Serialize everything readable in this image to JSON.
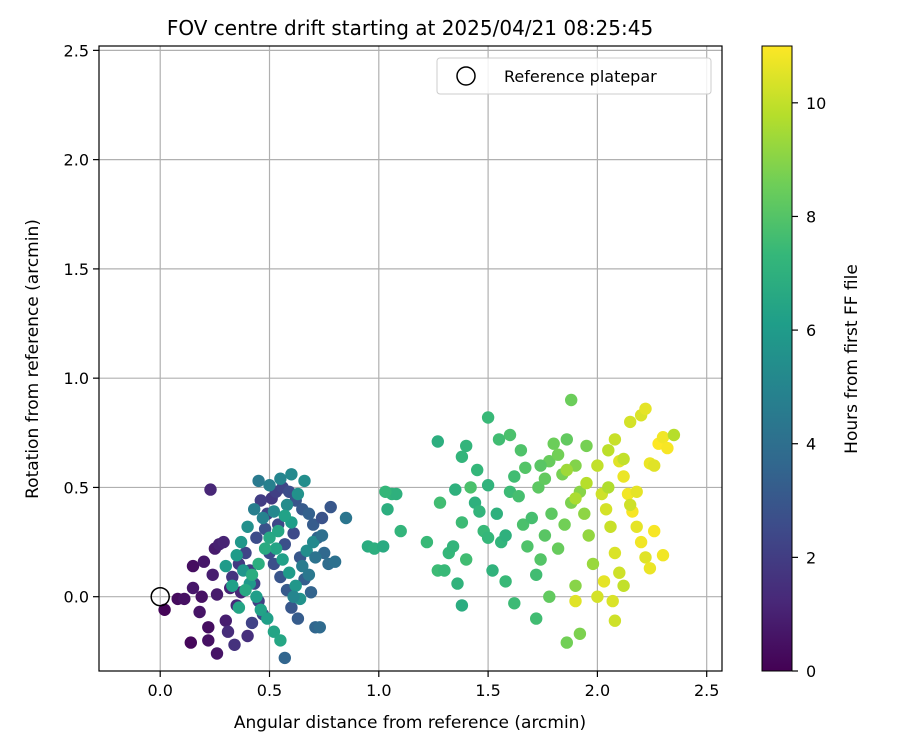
{
  "chart_data": {
    "type": "scatter",
    "title": "FOV centre drift starting at 2025/04/21 08:25:45",
    "xlabel": "Angular distance from reference (arcmin)",
    "ylabel": "Rotation from reference (arcmin)",
    "xlim": [
      -0.28,
      2.57
    ],
    "ylim": [
      -0.34,
      2.52
    ],
    "xticks": [
      0.0,
      0.5,
      1.0,
      1.5,
      2.0,
      2.5
    ],
    "xtick_labels": [
      "0.0",
      "0.5",
      "1.0",
      "1.5",
      "2.0",
      "2.5"
    ],
    "yticks": [
      0.0,
      0.5,
      1.0,
      1.5,
      2.0,
      2.5
    ],
    "ytick_labels": [
      "0.0",
      "0.5",
      "1.0",
      "1.5",
      "2.0",
      "2.5"
    ],
    "grid": true,
    "legend": {
      "placement": "top-right",
      "entries": [
        "Reference platepar"
      ]
    },
    "reference_point": {
      "x": 0.0,
      "y": 0.0,
      "label": "Reference platepar"
    },
    "colorbar": {
      "label": "Hours from first FF file",
      "min": 0,
      "max": 11,
      "ticks": [
        0,
        2,
        4,
        6,
        8,
        10
      ],
      "tick_labels": [
        "0",
        "2",
        "4",
        "6",
        "8",
        "10"
      ],
      "colormap": "viridis",
      "colormap_stops": [
        "#440154",
        "#482878",
        "#3e4989",
        "#31688e",
        "#26828e",
        "#1f9e89",
        "#35b779",
        "#6ece58",
        "#b5de2b",
        "#fde725"
      ]
    },
    "series": [
      {
        "points": [
          [
            0.02,
            -0.06,
            0.1
          ],
          [
            0.08,
            -0.01,
            0.3
          ],
          [
            0.11,
            -0.01,
            0.5
          ],
          [
            0.15,
            0.04,
            0.7
          ],
          [
            0.14,
            -0.21,
            0.2
          ],
          [
            0.18,
            -0.07,
            0.6
          ],
          [
            0.22,
            -0.14,
            0.4
          ],
          [
            0.22,
            -0.2,
            0.5
          ],
          [
            0.24,
            0.1,
            0.9
          ],
          [
            0.25,
            0.22,
            0.8
          ],
          [
            0.27,
            0.24,
            1.0
          ],
          [
            0.29,
            0.25,
            1.1
          ],
          [
            0.26,
            -0.26,
            0.6
          ],
          [
            0.3,
            -0.11,
            0.9
          ],
          [
            0.23,
            0.49,
            1.2
          ],
          [
            0.15,
            0.14,
            0.4
          ],
          [
            0.2,
            0.16,
            0.7
          ],
          [
            0.32,
            0.04,
            1.1
          ],
          [
            0.35,
            -0.04,
            1.3
          ],
          [
            0.37,
            0.02,
            1.2
          ],
          [
            0.19,
            0.0,
            0.5
          ],
          [
            0.31,
            -0.16,
            1.4
          ],
          [
            0.34,
            -0.22,
            1.6
          ],
          [
            0.4,
            -0.18,
            1.5
          ],
          [
            0.26,
            0.01,
            0.8
          ],
          [
            0.33,
            0.09,
            1.7
          ],
          [
            0.36,
            0.15,
            1.9
          ],
          [
            0.41,
            0.12,
            2.0
          ],
          [
            0.43,
            0.06,
            2.2
          ],
          [
            0.45,
            -0.02,
            2.1
          ],
          [
            0.47,
            -0.08,
            2.4
          ],
          [
            0.39,
            0.2,
            2.3
          ],
          [
            0.44,
            0.27,
            2.6
          ],
          [
            0.48,
            0.31,
            2.8
          ],
          [
            0.5,
            0.2,
            2.5
          ],
          [
            0.52,
            0.15,
            2.7
          ],
          [
            0.55,
            0.09,
            2.9
          ],
          [
            0.58,
            0.03,
            3.1
          ],
          [
            0.6,
            -0.05,
            3.0
          ],
          [
            0.63,
            -0.1,
            3.2
          ],
          [
            0.51,
            0.45,
            1.8
          ],
          [
            0.53,
            0.48,
            2.1
          ],
          [
            0.56,
            0.5,
            2.3
          ],
          [
            0.59,
            0.48,
            2.6
          ],
          [
            0.62,
            0.44,
            2.9
          ],
          [
            0.65,
            0.4,
            3.1
          ],
          [
            0.68,
            0.38,
            3.4
          ],
          [
            0.7,
            0.33,
            3.2
          ],
          [
            0.72,
            0.27,
            3.5
          ],
          [
            0.75,
            0.2,
            3.7
          ],
          [
            0.77,
            0.15,
            3.9
          ],
          [
            0.8,
            0.16,
            4.1
          ],
          [
            0.71,
            -0.14,
            3.6
          ],
          [
            0.73,
            -0.14,
            3.8
          ],
          [
            0.66,
            0.08,
            3.3
          ],
          [
            0.69,
            0.02,
            3.5
          ],
          [
            0.64,
            0.18,
            3.0
          ],
          [
            0.57,
            0.24,
            2.7
          ],
          [
            0.54,
            0.33,
            2.4
          ],
          [
            0.49,
            0.38,
            2.2
          ],
          [
            0.46,
            0.44,
            2.0
          ],
          [
            0.78,
            0.41,
            3.0
          ],
          [
            0.74,
            0.36,
            2.8
          ],
          [
            0.61,
            0.29,
            2.5
          ],
          [
            0.42,
            -0.12,
            2.2
          ],
          [
            0.45,
            0.53,
            4.5
          ],
          [
            0.5,
            0.51,
            4.8
          ],
          [
            0.55,
            0.54,
            5.0
          ],
          [
            0.6,
            0.56,
            5.2
          ],
          [
            0.66,
            0.53,
            5.4
          ],
          [
            0.63,
            0.47,
            5.6
          ],
          [
            0.58,
            0.42,
            5.3
          ],
          [
            0.52,
            0.39,
            5.1
          ],
          [
            0.47,
            0.36,
            4.9
          ],
          [
            0.43,
            0.4,
            4.7
          ],
          [
            0.4,
            0.32,
            5.5
          ],
          [
            0.37,
            0.25,
            5.8
          ],
          [
            0.35,
            0.19,
            6.0
          ],
          [
            0.38,
            0.12,
            5.7
          ],
          [
            0.41,
            0.06,
            5.9
          ],
          [
            0.44,
            0.0,
            6.1
          ],
          [
            0.46,
            -0.06,
            6.3
          ],
          [
            0.49,
            -0.1,
            6.2
          ],
          [
            0.52,
            -0.16,
            6.4
          ],
          [
            0.55,
            -0.2,
            6.5
          ],
          [
            0.5,
            0.27,
            6.6
          ],
          [
            0.53,
            0.22,
            6.4
          ],
          [
            0.56,
            0.17,
            6.2
          ],
          [
            0.59,
            0.11,
            6.0
          ],
          [
            0.62,
            0.05,
            5.8
          ],
          [
            0.64,
            -0.01,
            5.6
          ],
          [
            0.67,
            0.21,
            5.4
          ],
          [
            0.7,
            0.25,
            5.2
          ],
          [
            0.6,
            0.34,
            6.1
          ],
          [
            0.57,
            0.37,
            6.3
          ],
          [
            0.54,
            0.3,
            6.5
          ],
          [
            0.48,
            0.22,
            6.7
          ],
          [
            0.45,
            0.15,
            6.9
          ],
          [
            0.42,
            0.1,
            6.8
          ],
          [
            0.39,
            0.03,
            6.6
          ],
          [
            0.36,
            -0.05,
            6.4
          ],
          [
            0.33,
            0.05,
            6.2
          ],
          [
            0.3,
            0.14,
            6.0
          ],
          [
            0.65,
            0.14,
            4.6
          ],
          [
            0.68,
            0.1,
            4.4
          ],
          [
            0.71,
            0.18,
            4.2
          ],
          [
            0.74,
            0.28,
            4.0
          ],
          [
            0.85,
            0.36,
            4.3
          ],
          [
            0.57,
            -0.28,
            3.6
          ],
          [
            0.61,
            0.0,
            5.0
          ],
          [
            0.95,
            0.23,
            6.8
          ],
          [
            0.98,
            0.22,
            6.9
          ],
          [
            1.02,
            0.23,
            6.7
          ],
          [
            1.04,
            0.4,
            6.9
          ],
          [
            1.06,
            0.47,
            7.1
          ],
          [
            1.08,
            0.47,
            7.0
          ],
          [
            1.1,
            0.3,
            7.2
          ],
          [
            1.03,
            0.48,
            7.3
          ],
          [
            1.22,
            0.25,
            7.4
          ],
          [
            1.27,
            0.12,
            7.5
          ],
          [
            1.28,
            0.43,
            7.6
          ],
          [
            1.3,
            0.12,
            7.4
          ],
          [
            1.32,
            0.2,
            7.3
          ],
          [
            1.34,
            0.23,
            7.2
          ],
          [
            1.36,
            0.06,
            7.1
          ],
          [
            1.38,
            0.34,
            7.5
          ],
          [
            1.4,
            0.17,
            7.6
          ],
          [
            1.42,
            0.5,
            7.8
          ],
          [
            1.44,
            0.43,
            7.0
          ],
          [
            1.46,
            0.39,
            7.2
          ],
          [
            1.48,
            0.3,
            7.4
          ],
          [
            1.5,
            0.27,
            7.3
          ],
          [
            1.52,
            0.12,
            7.1
          ],
          [
            1.54,
            0.38,
            7.0
          ],
          [
            1.56,
            0.25,
            7.2
          ],
          [
            1.58,
            0.07,
            7.4
          ],
          [
            1.6,
            0.48,
            7.5
          ],
          [
            1.62,
            0.55,
            7.6
          ],
          [
            1.64,
            0.46,
            7.7
          ],
          [
            1.66,
            0.33,
            7.8
          ],
          [
            1.68,
            0.23,
            7.9
          ],
          [
            1.7,
            0.36,
            7.7
          ],
          [
            1.72,
            0.1,
            7.6
          ],
          [
            1.27,
            0.71,
            6.9
          ],
          [
            1.4,
            0.69,
            7.2
          ],
          [
            1.5,
            0.82,
            7.4
          ],
          [
            1.55,
            0.72,
            7.6
          ],
          [
            1.6,
            0.74,
            7.8
          ],
          [
            1.65,
            0.67,
            7.9
          ],
          [
            1.45,
            0.58,
            7.3
          ],
          [
            1.5,
            0.51,
            7.1
          ],
          [
            1.35,
            0.49,
            7.0
          ],
          [
            1.38,
            0.64,
            7.2
          ],
          [
            1.62,
            -0.03,
            7.5
          ],
          [
            1.72,
            -0.1,
            7.6
          ],
          [
            1.38,
            -0.04,
            6.8
          ],
          [
            1.58,
            0.28,
            7.0
          ],
          [
            1.67,
            0.59,
            8.0
          ],
          [
            1.73,
            0.5,
            8.2
          ],
          [
            1.76,
            0.54,
            8.3
          ],
          [
            1.78,
            0.62,
            8.4
          ],
          [
            1.8,
            0.7,
            8.5
          ],
          [
            1.82,
            0.65,
            8.6
          ],
          [
            1.84,
            0.56,
            8.7
          ],
          [
            1.86,
            0.72,
            8.3
          ],
          [
            1.88,
            0.9,
            8.5
          ],
          [
            1.79,
            0.38,
            8.2
          ],
          [
            1.76,
            0.28,
            8.1
          ],
          [
            1.74,
            0.17,
            8.0
          ],
          [
            1.78,
            0.0,
            8.3
          ],
          [
            1.82,
            0.22,
            8.4
          ],
          [
            1.85,
            0.33,
            8.6
          ],
          [
            1.88,
            0.43,
            8.8
          ],
          [
            1.9,
            0.6,
            8.9
          ],
          [
            1.92,
            0.48,
            9.0
          ],
          [
            1.94,
            0.38,
            9.1
          ],
          [
            1.96,
            0.28,
            9.2
          ],
          [
            1.98,
            0.15,
            9.3
          ],
          [
            1.9,
            0.05,
            9.0
          ],
          [
            1.86,
            -0.21,
            8.6
          ],
          [
            1.92,
            -0.17,
            8.8
          ],
          [
            1.74,
            0.6,
            8.1
          ],
          [
            1.95,
            0.69,
            8.7
          ],
          [
            1.86,
            0.58,
            9.4
          ],
          [
            1.9,
            0.45,
            9.6
          ],
          [
            1.95,
            0.52,
            9.8
          ],
          [
            2.0,
            0.6,
            10.0
          ],
          [
            2.02,
            0.47,
            10.2
          ],
          [
            2.04,
            0.4,
            10.3
          ],
          [
            2.06,
            0.32,
            10.1
          ],
          [
            2.08,
            0.2,
            10.4
          ],
          [
            2.1,
            0.11,
            10.2
          ],
          [
            2.12,
            0.05,
            10.0
          ],
          [
            1.9,
            -0.02,
            10.5
          ],
          [
            2.0,
            0.0,
            10.3
          ],
          [
            2.03,
            0.07,
            10.6
          ],
          [
            2.07,
            -0.02,
            10.4
          ],
          [
            2.08,
            -0.11,
            10.2
          ],
          [
            2.1,
            0.62,
            10.5
          ],
          [
            2.12,
            0.55,
            10.7
          ],
          [
            2.14,
            0.47,
            10.8
          ],
          [
            2.16,
            0.39,
            10.9
          ],
          [
            2.18,
            0.32,
            10.6
          ],
          [
            2.2,
            0.25,
            10.8
          ],
          [
            2.22,
            0.18,
            10.5
          ],
          [
            2.24,
            0.13,
            10.7
          ],
          [
            2.26,
            0.3,
            10.9
          ],
          [
            2.28,
            0.7,
            11.0
          ],
          [
            2.15,
            0.8,
            10.3
          ],
          [
            2.2,
            0.83,
            10.4
          ],
          [
            2.22,
            0.86,
            10.6
          ],
          [
            2.3,
            0.73,
            10.8
          ],
          [
            2.32,
            0.68,
            10.9
          ],
          [
            2.24,
            0.61,
            10.7
          ],
          [
            2.26,
            0.6,
            10.5
          ],
          [
            2.3,
            0.19,
            10.8
          ],
          [
            2.05,
            0.67,
            9.9
          ],
          [
            2.08,
            0.72,
            10.1
          ],
          [
            2.35,
            0.74,
            9.8
          ],
          [
            2.12,
            0.63,
            10.0
          ],
          [
            2.05,
            0.5,
            9.7
          ],
          [
            2.15,
            0.42,
            10.2
          ],
          [
            2.18,
            0.48,
            10.6
          ]
        ]
      }
    ]
  }
}
